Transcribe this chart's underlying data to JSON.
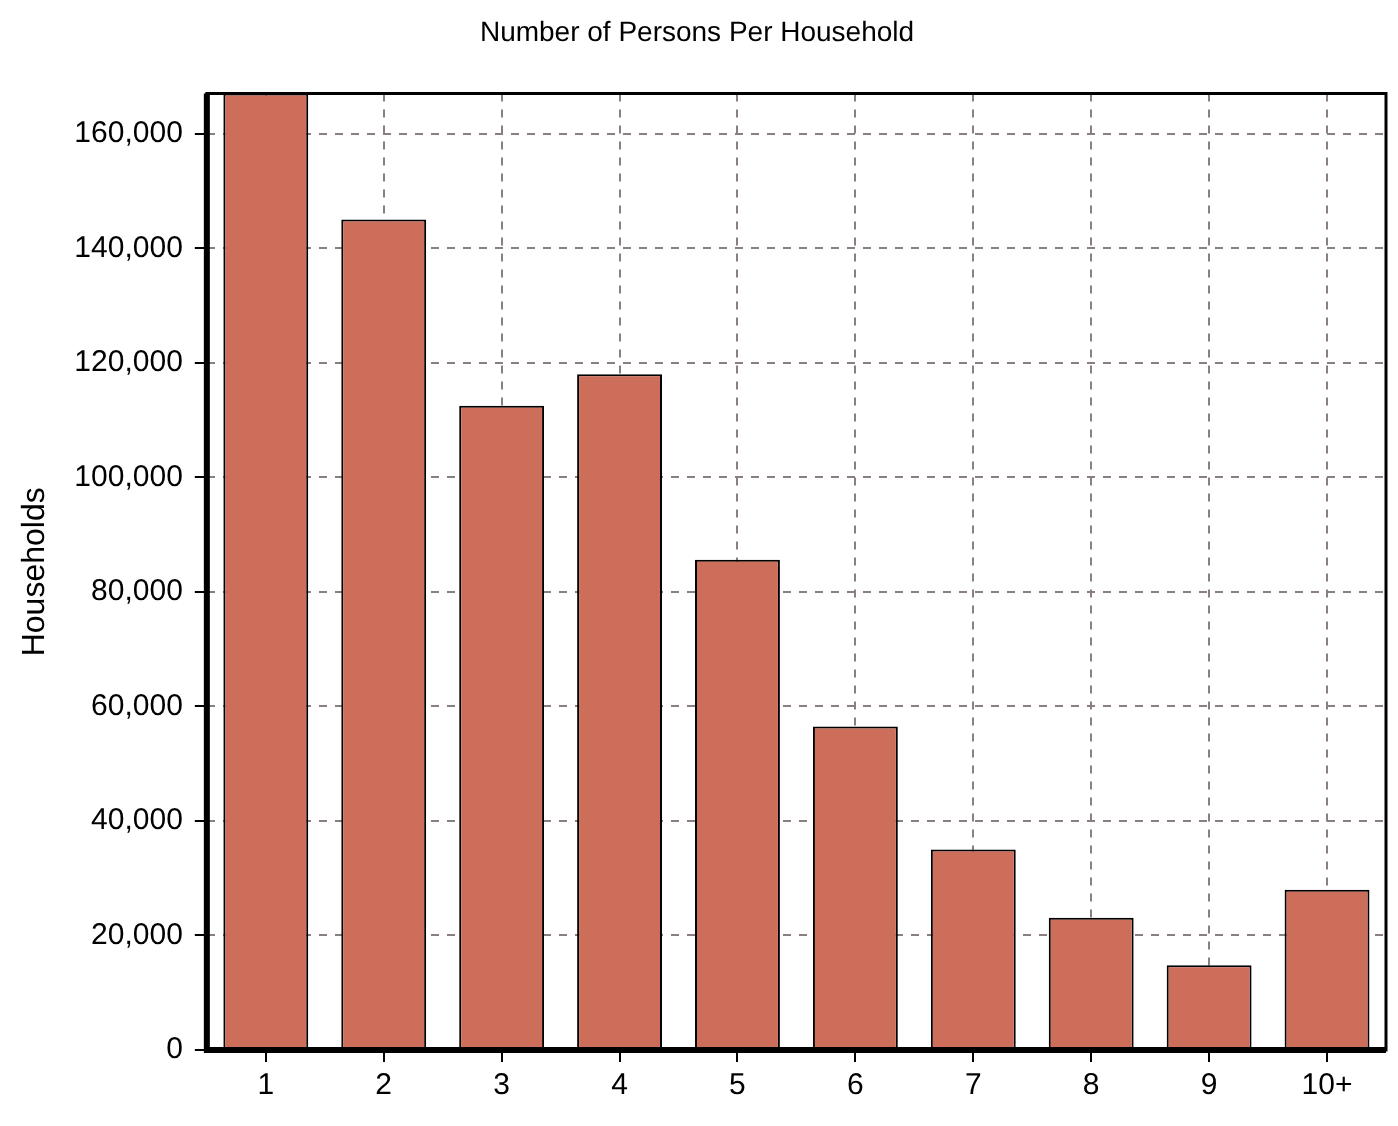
{
  "chart_data": {
    "type": "bar",
    "title": "Number of Persons Per Household",
    "ylabel": "Households",
    "categories": [
      "1",
      "2",
      "3",
      "4",
      "5",
      "6",
      "7",
      "8",
      "9",
      "10+"
    ],
    "values": [
      167000,
      145000,
      112500,
      118000,
      85600,
      56500,
      35000,
      23100,
      14800,
      28000
    ],
    "color": "#cd6e5a",
    "ylim": [
      0,
      167000
    ],
    "yticks": [
      {
        "value": 0,
        "label": "0"
      },
      {
        "value": 20000,
        "label": "20,000"
      },
      {
        "value": 40000,
        "label": "40,000"
      },
      {
        "value": 60000,
        "label": "60,000"
      },
      {
        "value": 80000,
        "label": "80,000"
      },
      {
        "value": 100000,
        "label": "100,000"
      },
      {
        "value": 120000,
        "label": "120,000"
      },
      {
        "value": 140000,
        "label": "140,000"
      },
      {
        "value": 160000,
        "label": "160,000"
      }
    ],
    "grid": true
  }
}
